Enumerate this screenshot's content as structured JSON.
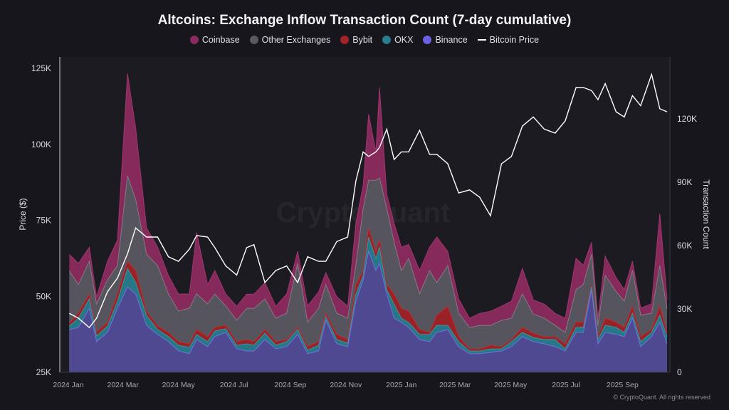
{
  "title": "Altcoins: Exchange Inflow Transaction Count (7-day cumulative)",
  "copyright": "© CryptoQuant. All rights reserved",
  "watermark": "CryptoQuant",
  "legend": [
    {
      "label": "Coinbase",
      "color": "#8a2a5e",
      "type": "area"
    },
    {
      "label": "Other Exchanges",
      "color": "#5a5860",
      "type": "area"
    },
    {
      "label": "Bybit",
      "color": "#a02428",
      "type": "area"
    },
    {
      "label": "OKX",
      "color": "#2a7d8e",
      "type": "area"
    },
    {
      "label": "Binance",
      "color": "#6a62e0",
      "type": "area"
    },
    {
      "label": "Bitcoin Price",
      "color": "#ffffff",
      "type": "line"
    }
  ],
  "chart_data": {
    "type": "area",
    "stacked": true,
    "title": "Altcoins: Exchange Inflow Transaction Count (7-day cumulative)",
    "ylabel_left": "Price ($)",
    "ylabel_right": "Transaction Count",
    "ylim_left": [
      25000,
      125000
    ],
    "ylim_right": [
      0,
      144000
    ],
    "xlim": [
      "2024-01-01",
      "2025-10-20"
    ],
    "left_ticks": [
      "25K",
      "50K",
      "75K",
      "100K",
      "125K"
    ],
    "left_tick_values": [
      25000,
      50000,
      75000,
      100000,
      125000
    ],
    "right_ticks": [
      "0",
      "30K",
      "60K",
      "90K",
      "120K"
    ],
    "right_tick_values": [
      0,
      30000,
      60000,
      90000,
      120000
    ],
    "x_ticks": [
      "2024 Jan",
      "2024 Mar",
      "2024 May",
      "2024 Jul",
      "2024 Sep",
      "2024 Nov",
      "2025 Jan",
      "2025 Mar",
      "2025 May",
      "2025 Jul",
      "2025 Sep"
    ],
    "x_tick_dates": [
      "2024-01-01",
      "2024-03-01",
      "2024-05-01",
      "2024-07-01",
      "2024-09-01",
      "2024-11-01",
      "2025-01-01",
      "2025-03-01",
      "2025-05-01",
      "2025-07-01",
      "2025-09-01"
    ],
    "legend_position": "top",
    "grid": false,
    "x": [
      "2024-01-02",
      "2024-01-12",
      "2024-01-24",
      "2024-02-01",
      "2024-02-13",
      "2024-02-24",
      "2024-03-06",
      "2024-03-15",
      "2024-03-27",
      "2024-04-08",
      "2024-04-20",
      "2024-05-01",
      "2024-05-13",
      "2024-05-21",
      "2024-06-02",
      "2024-06-10",
      "2024-06-22",
      "2024-07-04",
      "2024-07-15",
      "2024-07-23",
      "2024-08-04",
      "2024-08-16",
      "2024-08-28",
      "2024-09-09",
      "2024-09-20",
      "2024-10-02",
      "2024-10-10",
      "2024-10-22",
      "2024-11-03",
      "2024-11-12",
      "2024-11-20",
      "2024-11-26",
      "2024-12-04",
      "2024-12-08",
      "2024-12-16",
      "2024-12-24",
      "2025-01-01",
      "2025-01-09",
      "2025-01-21",
      "2025-02-01",
      "2025-02-09",
      "2025-02-21",
      "2025-03-05",
      "2025-03-17",
      "2025-03-28",
      "2025-04-09",
      "2025-04-21",
      "2025-05-02",
      "2025-05-14",
      "2025-05-26",
      "2025-06-07",
      "2025-06-19",
      "2025-06-30",
      "2025-07-12",
      "2025-07-20",
      "2025-07-29",
      "2025-08-05",
      "2025-08-13",
      "2025-08-25",
      "2025-09-03",
      "2025-09-12",
      "2025-09-21",
      "2025-10-03",
      "2025-10-12",
      "2025-10-20"
    ],
    "series": [
      {
        "name": "Binance",
        "axis": "right",
        "values": [
          20200,
          21200,
          30300,
          14500,
          18900,
          30300,
          40400,
          37100,
          22200,
          17900,
          14500,
          10100,
          8800,
          15500,
          12100,
          16900,
          18900,
          11100,
          10100,
          10100,
          15500,
          11100,
          12100,
          17900,
          8800,
          10100,
          24600,
          13500,
          12100,
          33700,
          43800,
          57300,
          48200,
          51600,
          37100,
          25600,
          23600,
          21200,
          15500,
          14500,
          18900,
          20200,
          12100,
          8800,
          8800,
          9400,
          10100,
          12100,
          16900,
          14500,
          13500,
          12100,
          10100,
          18900,
          18900,
          39100,
          13500,
          18900,
          17900,
          16900,
          25600,
          12100,
          16900,
          23600,
          13500
        ]
      },
      {
        "name": "OKX",
        "axis": "right",
        "values": [
          1700,
          4400,
          4400,
          2700,
          3000,
          3400,
          8800,
          5400,
          4700,
          2400,
          2400,
          2700,
          3000,
          2400,
          2400,
          2700,
          1700,
          1700,
          3400,
          2700,
          3000,
          1700,
          2400,
          2400,
          1700,
          2700,
          1700,
          2000,
          1700,
          3400,
          2000,
          6700,
          5700,
          7800,
          2000,
          6700,
          2000,
          2400,
          2400,
          3400,
          3400,
          2000,
          2400,
          1300,
          1300,
          1700,
          1000,
          2400,
          2000,
          2000,
          2000,
          3400,
          1000,
          2400,
          2400,
          1300,
          2000,
          3400,
          3400,
          2000,
          2400,
          2400,
          2000,
          3400,
          3400
        ]
      },
      {
        "name": "Bybit",
        "axis": "right",
        "values": [
          1300,
          2400,
          2400,
          2000,
          1700,
          3400,
          3400,
          5700,
          2000,
          1700,
          2000,
          1700,
          1700,
          2400,
          2400,
          1700,
          1700,
          1700,
          2000,
          1700,
          1700,
          1700,
          1000,
          1000,
          1700,
          1700,
          1700,
          2400,
          1700,
          4400,
          2400,
          4400,
          3400,
          3400,
          2400,
          4700,
          4700,
          5400,
          2400,
          1000,
          4700,
          9100,
          2400,
          1000,
          1000,
          1700,
          1000,
          1000,
          2400,
          2000,
          1300,
          1300,
          2400,
          2400,
          2400,
          1000,
          1300,
          3400,
          2400,
          2400,
          3400,
          2400,
          1300,
          4400,
          2000
        ]
      },
      {
        "name": "Other Exchanges",
        "axis": "right",
        "values": [
          24900,
          13500,
          15500,
          13100,
          20200,
          13500,
          40400,
          33700,
          27000,
          28600,
          18200,
          14500,
          16900,
          16900,
          15500,
          15800,
          9100,
          10100,
          14800,
          15800,
          14500,
          11100,
          12500,
          30300,
          11500,
          15800,
          13500,
          10100,
          10100,
          9100,
          29300,
          22600,
          33700,
          29300,
          36100,
          24600,
          17900,
          24900,
          16900,
          29300,
          15500,
          19200,
          11100,
          10100,
          11100,
          9400,
          12500,
          10100,
          15800,
          9100,
          8800,
          5400,
          5400,
          15500,
          17900,
          14500,
          5400,
          20200,
          14500,
          12500,
          16900,
          10100,
          7800,
          19200,
          11300
        ]
      },
      {
        "name": "Coinbase",
        "axis": "right",
        "values": [
          7800,
          10100,
          6700,
          3400,
          8800,
          12100,
          48500,
          33700,
          12500,
          8800,
          8800,
          8100,
          6700,
          29000,
          9100,
          11100,
          5700,
          6700,
          6700,
          6700,
          7800,
          5700,
          9100,
          5700,
          7800,
          7800,
          5700,
          7800,
          5700,
          20200,
          11100,
          31300,
          13500,
          42800,
          6700,
          9100,
          11100,
          6700,
          11100,
          11100,
          21600,
          6700,
          6700,
          4400,
          5700,
          6700,
          6700,
          8100,
          12100,
          6700,
          6700,
          5700,
          6700,
          14800,
          9100,
          5700,
          3400,
          9100,
          6700,
          5400,
          4400,
          3400,
          4400,
          24600,
          4400
        ]
      },
      {
        "name": "Bitcoin Price",
        "axis": "left",
        "type": "line",
        "values": [
          44400,
          42800,
          39700,
          42800,
          51500,
          56000,
          64000,
          72500,
          69500,
          69500,
          63000,
          61500,
          65500,
          70000,
          69500,
          66000,
          60000,
          57000,
          66000,
          67000,
          54500,
          58500,
          60000,
          54500,
          63000,
          61500,
          61500,
          68000,
          69500,
          88000,
          97500,
          96000,
          97500,
          99000,
          105000,
          95000,
          97500,
          97500,
          104600,
          96700,
          96700,
          93600,
          84000,
          85000,
          82600,
          76500,
          93600,
          96000,
          106000,
          109000,
          105000,
          103700,
          107700,
          118700,
          118700,
          117700,
          114700,
          120000,
          110700,
          109000,
          116000,
          112700,
          123000,
          111700,
          110700
        ]
      }
    ]
  }
}
